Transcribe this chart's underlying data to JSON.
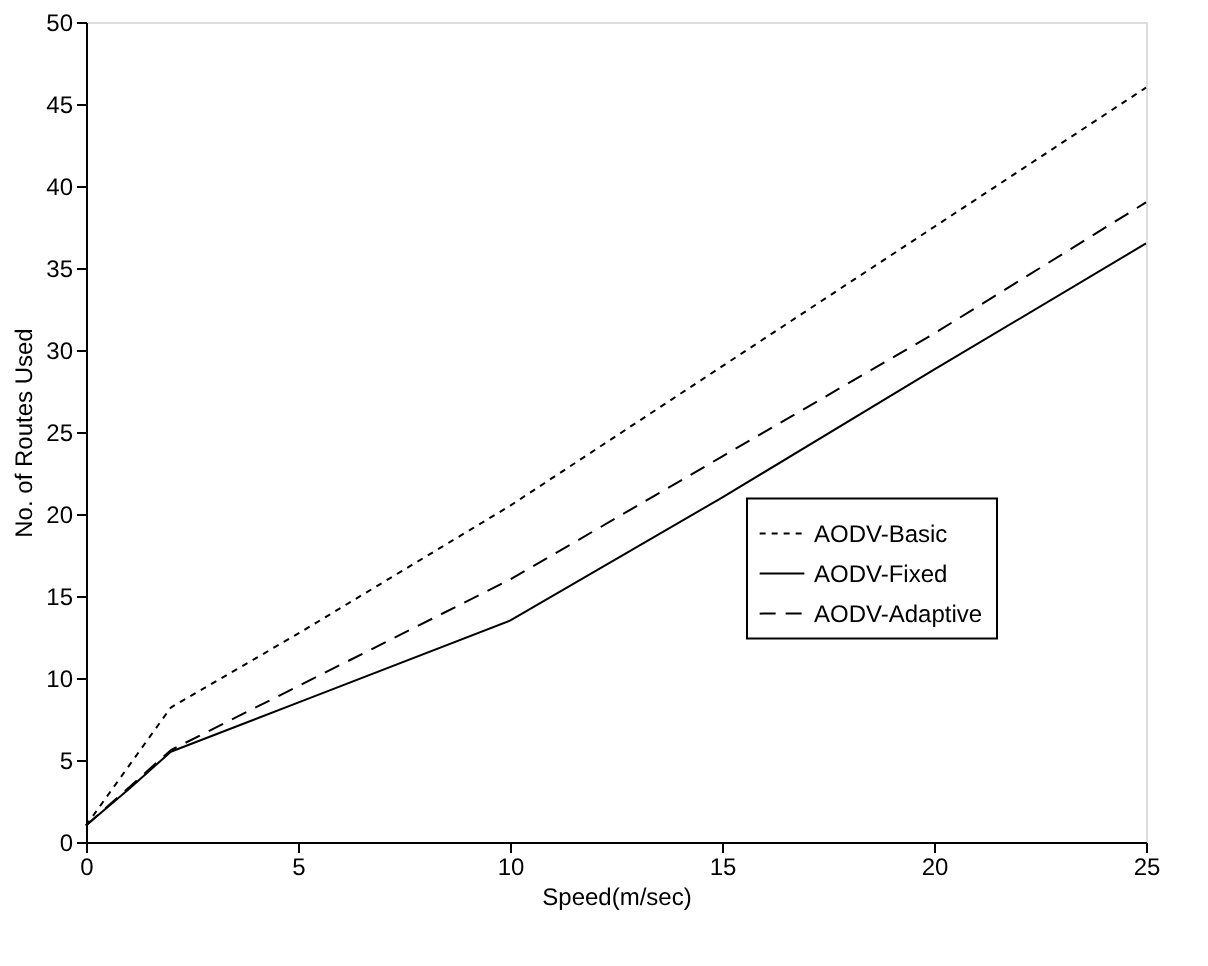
{
  "chart_data": {
    "type": "line",
    "xlabel": "Speed(m/sec)",
    "ylabel": "No. of Routes Used",
    "x": [
      0,
      1,
      2,
      5,
      10,
      15,
      20,
      25
    ],
    "series": [
      {
        "name": "AODV-Basic",
        "color": "#000000",
        "line_style": "dotted",
        "values": [
          1,
          4.6,
          8.2,
          12.7,
          20.5,
          29,
          37.5,
          46
        ]
      },
      {
        "name": "AODV-Fixed",
        "color": "#000000",
        "line_style": "solid",
        "values": [
          1,
          3.2,
          5.5,
          8.5,
          13.5,
          21,
          28.8,
          36.5
        ]
      },
      {
        "name": "AODV-Adaptive",
        "color": "#000000",
        "line_style": "dashed",
        "values": [
          1,
          3.3,
          5.6,
          9.5,
          16,
          23.5,
          31,
          39
        ]
      }
    ],
    "xlim": [
      0,
      25
    ],
    "xticks": [
      0,
      5,
      10,
      15,
      20,
      25
    ],
    "ylim": [
      0,
      50
    ],
    "yticks": [
      0,
      5,
      10,
      15,
      20,
      25,
      30,
      35,
      40,
      45,
      50
    ],
    "grid": false,
    "legend": "center right",
    "marker": "none"
  }
}
